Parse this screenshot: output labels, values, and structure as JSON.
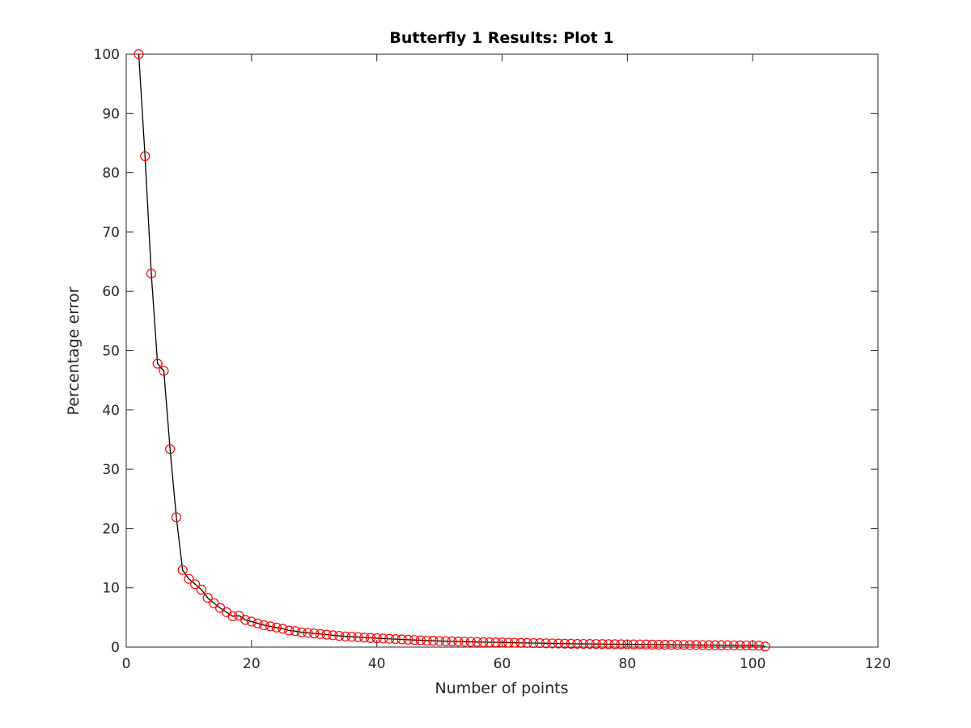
{
  "chart_data": {
    "type": "line",
    "title": "Butterfly 1 Results: Plot 1",
    "xlabel": "Number of points",
    "ylabel": "Percentage error",
    "xlim": [
      0,
      120
    ],
    "ylim": [
      0,
      100
    ],
    "x_ticks": [
      0,
      20,
      40,
      60,
      80,
      100,
      120
    ],
    "y_ticks": [
      0,
      10,
      20,
      30,
      40,
      50,
      60,
      70,
      80,
      90,
      100
    ],
    "x_tick_labels": [
      "0",
      "20",
      "40",
      "60",
      "80",
      "100",
      "120"
    ],
    "y_tick_labels": [
      "0",
      "10",
      "20",
      "30",
      "40",
      "50",
      "60",
      "70",
      "80",
      "90",
      "100"
    ],
    "grid": false,
    "legend": "none",
    "line_color": "#000000",
    "marker_color": "#ff0000",
    "marker": "circle-open",
    "x": [
      2,
      3,
      4,
      5,
      6,
      7,
      8,
      9,
      10,
      11,
      12,
      13,
      14,
      15,
      16,
      17,
      18,
      19,
      20,
      21,
      22,
      23,
      24,
      25,
      26,
      27,
      28,
      29,
      30,
      31,
      32,
      33,
      34,
      35,
      36,
      37,
      38,
      39,
      40,
      41,
      42,
      43,
      44,
      45,
      46,
      47,
      48,
      49,
      50,
      51,
      52,
      53,
      54,
      55,
      56,
      57,
      58,
      59,
      60,
      61,
      62,
      63,
      64,
      65,
      66,
      67,
      68,
      69,
      70,
      71,
      72,
      73,
      74,
      75,
      76,
      77,
      78,
      79,
      80,
      81,
      82,
      83,
      84,
      85,
      86,
      87,
      88,
      89,
      90,
      91,
      92,
      93,
      94,
      95,
      96,
      97,
      98,
      99,
      100,
      101,
      102
    ],
    "y": [
      100,
      82.8,
      63,
      47.8,
      46.6,
      33.4,
      21.9,
      13,
      11.5,
      10.6,
      9.7,
      8.3,
      7.4,
      6.6,
      5.9,
      5.2,
      5.3,
      4.6,
      4.3,
      4,
      3.7,
      3.5,
      3.3,
      3.1,
      2.8,
      2.7,
      2.5,
      2.4,
      2.3,
      2.2,
      2.1,
      2,
      1.9,
      1.8,
      1.75,
      1.7,
      1.6,
      1.55,
      1.5,
      1.45,
      1.4,
      1.35,
      1.3,
      1.25,
      1.2,
      1.15,
      1.1,
      1.07,
      1.03,
      1,
      0.97,
      0.94,
      0.91,
      0.88,
      0.86,
      0.84,
      0.82,
      0.8,
      0.78,
      0.76,
      0.74,
      0.72,
      0.7,
      0.68,
      0.66,
      0.64,
      0.62,
      0.6,
      0.58,
      0.56,
      0.55,
      0.54,
      0.53,
      0.52,
      0.51,
      0.5,
      0.49,
      0.48,
      0.47,
      0.46,
      0.45,
      0.44,
      0.43,
      0.42,
      0.41,
      0.4,
      0.39,
      0.38,
      0.37,
      0.36,
      0.35,
      0.34,
      0.33,
      0.32,
      0.31,
      0.3,
      0.29,
      0.28,
      0.27,
      0.26,
      0.1
    ]
  }
}
